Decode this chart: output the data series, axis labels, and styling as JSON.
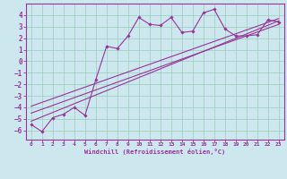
{
  "xlabel": "Windchill (Refroidissement éolien,°C)",
  "bg_color": "#cce8ee",
  "grid_color": "#99ccbb",
  "line_color": "#993399",
  "spine_color": "#993399",
  "xlim": [
    -0.5,
    23.5
  ],
  "ylim": [
    -6.8,
    5.0
  ],
  "xticks": [
    0,
    1,
    2,
    3,
    4,
    5,
    6,
    7,
    8,
    9,
    10,
    11,
    12,
    13,
    14,
    15,
    16,
    17,
    18,
    19,
    20,
    21,
    22,
    23
  ],
  "yticks": [
    -6,
    -5,
    -4,
    -3,
    -2,
    -1,
    0,
    1,
    2,
    3,
    4
  ],
  "data_x": [
    0,
    1,
    2,
    3,
    4,
    5,
    6,
    7,
    8,
    9,
    10,
    11,
    12,
    13,
    14,
    15,
    16,
    17,
    18,
    19,
    20,
    21,
    22,
    23
  ],
  "data_y": [
    -5.5,
    -6.1,
    -4.9,
    -4.6,
    -4.0,
    -4.7,
    -1.6,
    1.3,
    1.1,
    2.2,
    3.8,
    3.2,
    3.1,
    3.8,
    2.5,
    2.6,
    4.2,
    4.5,
    2.8,
    2.2,
    2.2,
    2.3,
    3.6,
    3.4
  ],
  "line1_x": [
    0,
    23
  ],
  "line1_y": [
    -5.2,
    3.5
  ],
  "line2_x": [
    0,
    23
  ],
  "line2_y": [
    -4.5,
    3.2
  ],
  "line3_x": [
    0,
    23
  ],
  "line3_y": [
    -3.9,
    3.7
  ]
}
